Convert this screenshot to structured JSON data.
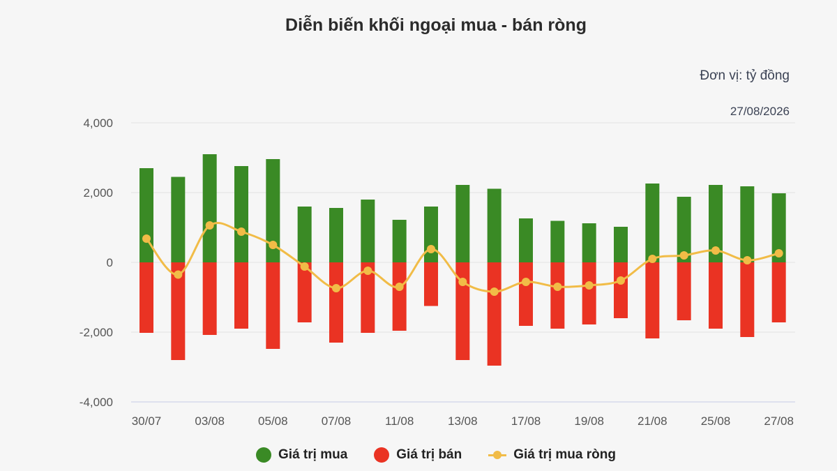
{
  "chart_data": {
    "type": "bar",
    "title": "Diễn biến khối ngoại mua - bán ròng",
    "unit_label": "Đơn vị: tỷ đồng",
    "date_label": "27/08/2026",
    "ylim": [
      -4000,
      4000
    ],
    "yticks": [
      -4000,
      -2000,
      0,
      2000,
      4000
    ],
    "ytick_labels": [
      "-4,000",
      "-2,000",
      "0",
      "2,000",
      "4,000"
    ],
    "grid": true,
    "legend_position": "bottom",
    "xtick_labels": [
      "30/07",
      "03/08",
      "05/08",
      "07/08",
      "11/08",
      "13/08",
      "17/08",
      "19/08",
      "21/08",
      "25/08",
      "27/08"
    ],
    "xtick_indices": [
      0,
      2,
      4,
      6,
      8,
      10,
      12,
      14,
      16,
      18,
      20
    ],
    "series": [
      {
        "name": "Giá trị mua",
        "color": "#3a8a25",
        "values": [
          2700,
          2450,
          3100,
          2760,
          2960,
          1600,
          1560,
          1800,
          1220,
          1600,
          2220,
          2110,
          1260,
          1190,
          1120,
          1020,
          2260,
          1880,
          2220,
          2180,
          1980
        ]
      },
      {
        "name": "Giá trị bán",
        "color": "#ea3323",
        "values": [
          -2020,
          -2800,
          -2080,
          -1900,
          -2480,
          -1720,
          -2300,
          -2020,
          -1960,
          -1250,
          -2800,
          -2960,
          -1820,
          -1900,
          -1780,
          -1600,
          -2180,
          -1660,
          -1900,
          -2140,
          -1720
        ]
      },
      {
        "name": "Giá trị mua ròng",
        "color": "#f1bc47",
        "values": [
          680,
          -350,
          1060,
          880,
          500,
          -120,
          -740,
          -240,
          -700,
          380,
          -560,
          -840,
          -560,
          -700,
          -660,
          -520,
          100,
          200,
          340,
          60,
          260
        ]
      }
    ]
  }
}
